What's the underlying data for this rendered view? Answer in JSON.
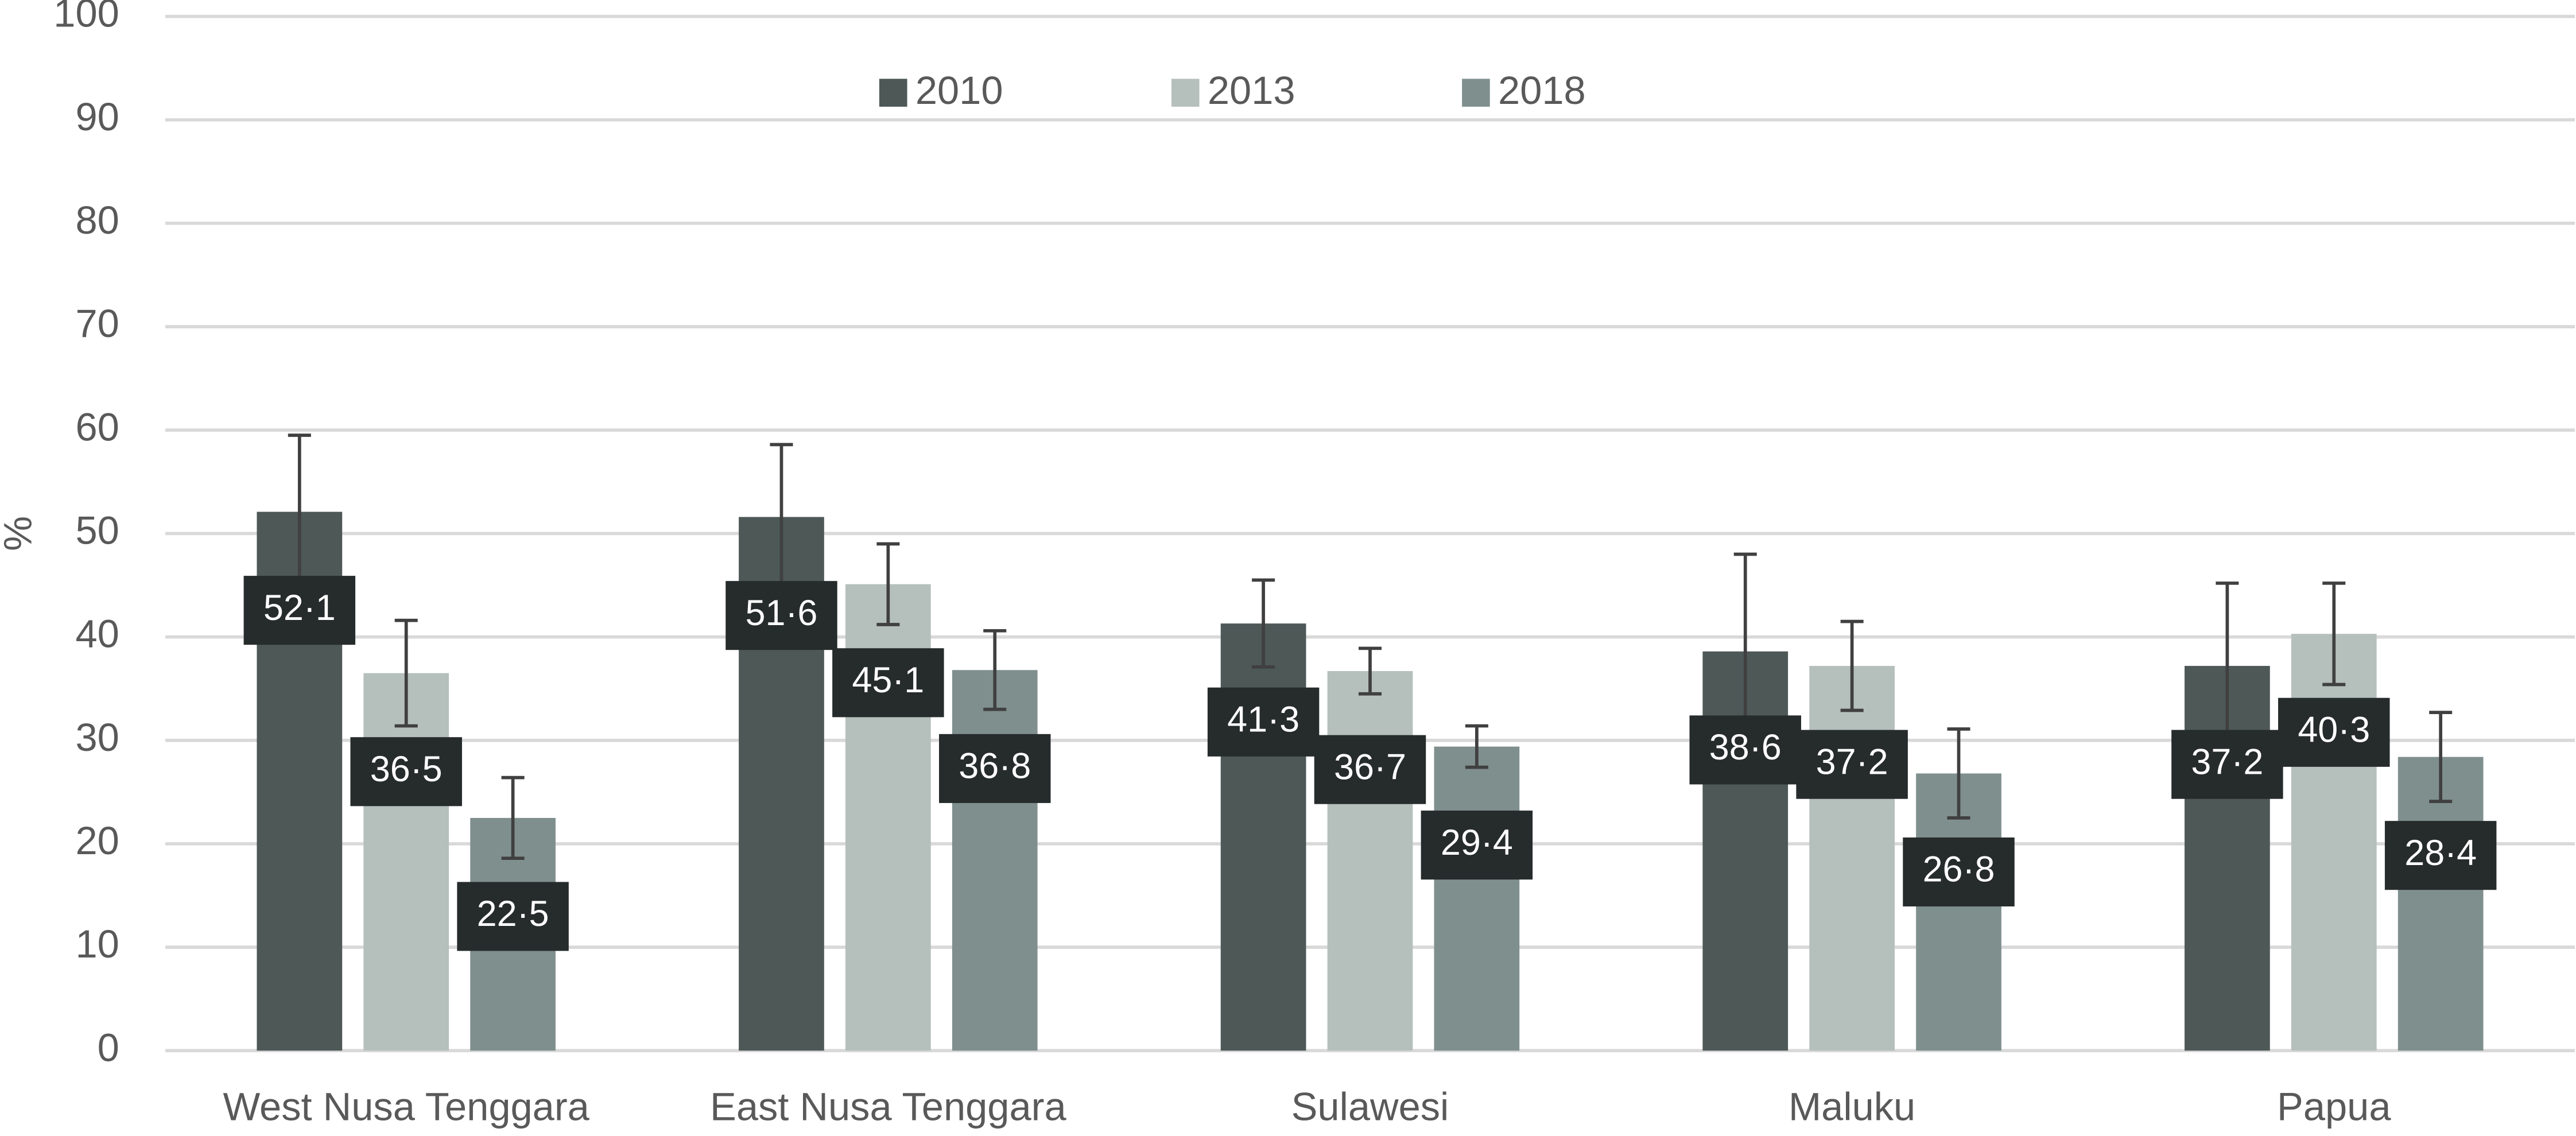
{
  "chart_data": {
    "type": "bar",
    "y_label": "%",
    "categories": [
      "West Nusa Tenggara",
      "East Nusa Tenggara",
      "Sulawesi",
      "Maluku",
      "Papua"
    ],
    "series": [
      {
        "name": "2010",
        "color": "#4d5857",
        "values": [
          52.1,
          51.6,
          41.3,
          38.6,
          37.2
        ],
        "value_labels": [
          "52·1",
          "51·6",
          "41·3",
          "38·6",
          "37·2"
        ],
        "errors": [
          7.4,
          7.0,
          4.2,
          9.4,
          8.0
        ]
      },
      {
        "name": "2013",
        "color": "#b5bfbc",
        "values": [
          36.5,
          45.1,
          36.7,
          37.2,
          40.3
        ],
        "value_labels": [
          "36·5",
          "45·1",
          "36·7",
          "37·2",
          "40·3"
        ],
        "errors": [
          5.1,
          3.9,
          2.2,
          4.3,
          4.9
        ]
      },
      {
        "name": "2018",
        "color": "#7f8f8e",
        "values": [
          22.5,
          36.8,
          29.4,
          26.8,
          28.4
        ],
        "value_labels": [
          "22·5",
          "36·8",
          "29·4",
          "26·8",
          "28·4"
        ],
        "errors": [
          3.9,
          3.8,
          2.0,
          4.3,
          4.3
        ]
      }
    ],
    "ylim": [
      0,
      100
    ],
    "yticks": [
      0,
      10,
      20,
      30,
      40,
      50,
      60,
      70,
      80,
      90,
      100
    ],
    "grid": true,
    "legend": "top"
  }
}
